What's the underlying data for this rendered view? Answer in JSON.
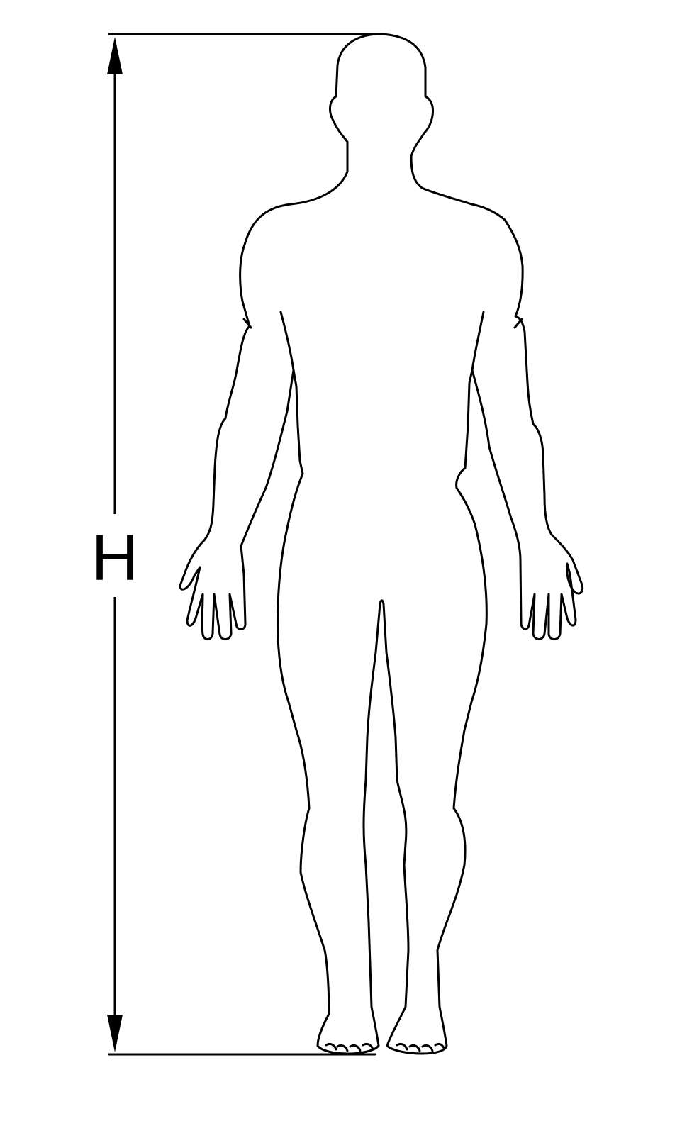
{
  "diagram": {
    "height_label": "H",
    "stroke_color": "#000000",
    "background_color": "#ffffff",
    "icons": {
      "figure": "human-body-outline-icon",
      "arrow_up": "arrow-up-icon",
      "arrow_down": "arrow-down-icon"
    }
  }
}
